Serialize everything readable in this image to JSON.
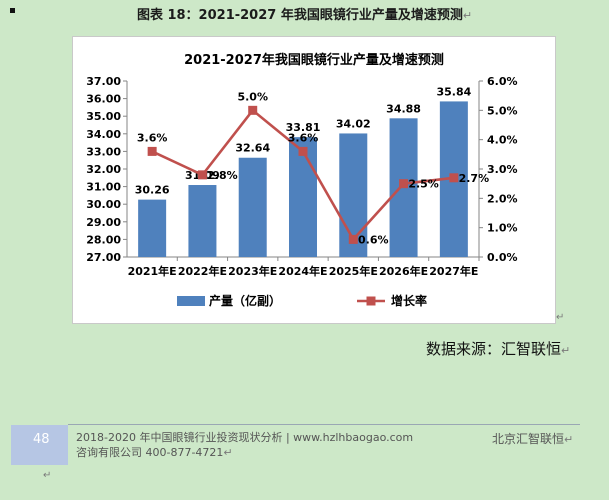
{
  "document": {
    "caption": "图表 18：2021-2027 年我国眼镜行业产量及增速预测",
    "source": "数据来源：汇智联恒"
  },
  "footer": {
    "page_number": "48",
    "line1": "2018-2020 年中国眼镜行业投资现状分析 | www.hzlhbaogao.com",
    "line2": "咨询有限公司  400-877-4721",
    "company": "北京汇智联恒"
  },
  "colors": {
    "bar": "#4f81bd",
    "line": "#c0504d",
    "background": "#cde8c8"
  },
  "chart_data": {
    "type": "bar",
    "title": "2021-2027年我国眼镜行业产量及增速预测",
    "categories": [
      "2021年E",
      "2022年E",
      "2023年E",
      "2024年E",
      "2025年E",
      "2026年E",
      "2027年E"
    ],
    "series": [
      {
        "name": "产量（亿副）",
        "type": "bar",
        "axis": "left",
        "values": [
          30.26,
          31.09,
          32.64,
          33.81,
          34.02,
          34.88,
          35.84
        ]
      },
      {
        "name": "增长率",
        "type": "line",
        "axis": "right",
        "values": [
          3.6,
          2.8,
          5.0,
          3.6,
          0.6,
          2.5,
          2.7
        ]
      }
    ],
    "value_labels": {
      "bar": [
        "30.26",
        "31.09",
        "32.64",
        "33.81",
        "34.02",
        "34.88",
        "35.84"
      ],
      "line": [
        "3.6%",
        "2.8%",
        "5.0%",
        "3.6%",
        "0.6%",
        "2.5%",
        "2.7%"
      ]
    },
    "y_left": {
      "ylim": [
        27,
        37
      ],
      "ticks": [
        "27.00",
        "28.00",
        "29.00",
        "30.00",
        "31.00",
        "32.00",
        "33.00",
        "34.00",
        "35.00",
        "36.00",
        "37.00"
      ]
    },
    "y_right": {
      "ylim": [
        0,
        6
      ],
      "ticks": [
        "0.0%",
        "1.0%",
        "2.0%",
        "3.0%",
        "4.0%",
        "5.0%",
        "6.0%"
      ]
    },
    "legend_position": "bottom",
    "grid": false
  }
}
